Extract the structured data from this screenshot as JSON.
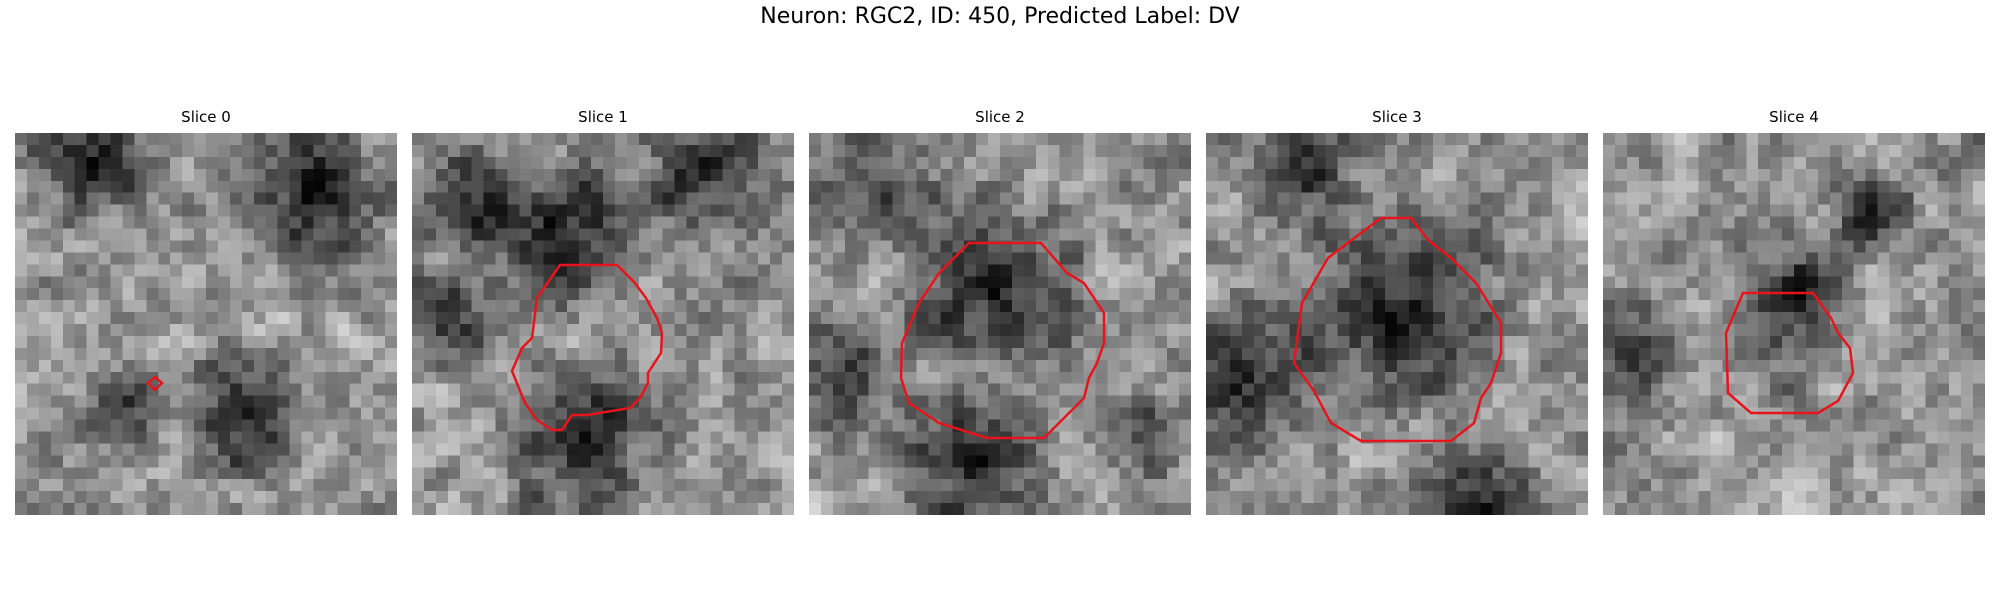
{
  "figure": {
    "title": "Neuron: RGC2, ID: 450, Predicted Label: DV"
  },
  "panels": [
    {
      "title": "Slice 0"
    },
    {
      "title": "Slice 1"
    },
    {
      "title": "Slice 2"
    },
    {
      "title": "Slice 3"
    },
    {
      "title": "Slice 4"
    }
  ],
  "colors": {
    "contour": "#e8141b",
    "background": "#ffffff"
  }
}
